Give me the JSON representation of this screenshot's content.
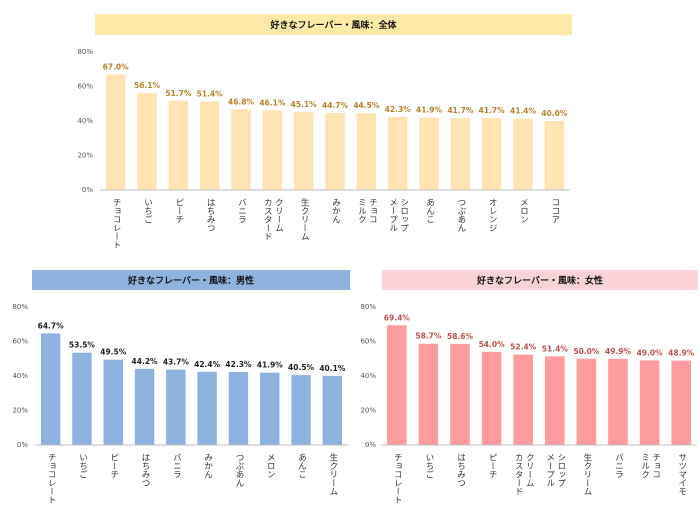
{
  "chart_data": [
    {
      "type": "bar",
      "title": "好きなフレーバー・風味：全体",
      "title_background": "#fde9a8",
      "color": "#fde4b2",
      "value_label_color": "#b8812f",
      "categories": [
        "チョコレート",
        "いちご",
        "ピーチ",
        "はちみつ",
        "バニラ",
        "カスタード\nクリーム",
        "生クリーム",
        "みかん",
        "ミルク\nチョコ",
        "メープル\nシロップ",
        "あんこ",
        "つぶあん",
        "オレンジ",
        "メロン",
        "ココア"
      ],
      "values": [
        67.0,
        56.1,
        51.7,
        51.4,
        46.8,
        46.1,
        45.1,
        44.7,
        44.5,
        42.3,
        41.9,
        41.7,
        41.7,
        41.4,
        40.0
      ],
      "value_labels": [
        "67.0%",
        "56.1%",
        "51.7%",
        "51.4%",
        "46.8%",
        "46.1%",
        "45.1%",
        "44.7%",
        "44.5%",
        "42.3%",
        "41.9%",
        "41.7%",
        "41.7%",
        "41.4%",
        "40.0%"
      ],
      "ylim": [
        0,
        80
      ],
      "yticks": [
        {
          "value": 0,
          "label": "0%"
        },
        {
          "value": 20,
          "label": "20%"
        },
        {
          "value": 40,
          "label": "40%"
        },
        {
          "value": 60,
          "label": "60%"
        },
        {
          "value": 80,
          "label": "80%"
        }
      ]
    },
    {
      "type": "bar",
      "title": "好きなフレーバー・風味：男性",
      "title_background": "#8fb3df",
      "color": "#8eb2e0",
      "value_label_color": "#1f1f1f",
      "categories": [
        "チョコレート",
        "いちご",
        "ピーチ",
        "はちみつ",
        "バニラ",
        "みかん",
        "つぶあん",
        "メロン",
        "あんこ",
        "生クリーム"
      ],
      "values": [
        64.7,
        53.5,
        49.5,
        44.2,
        43.7,
        42.4,
        42.3,
        41.9,
        40.5,
        40.1
      ],
      "value_labels": [
        "64.7%",
        "53.5%",
        "49.5%",
        "44.2%",
        "43.7%",
        "42.4%",
        "42.3%",
        "41.9%",
        "40.5%",
        "40.1%"
      ],
      "ylim": [
        0,
        80
      ],
      "yticks": [
        {
          "value": 0,
          "label": "0%"
        },
        {
          "value": 20,
          "label": "20%"
        },
        {
          "value": 40,
          "label": "40%"
        },
        {
          "value": 60,
          "label": "60%"
        },
        {
          "value": 80,
          "label": "80%"
        }
      ]
    },
    {
      "type": "bar",
      "title": "好きなフレーバー・風味：女性",
      "title_background": "#fbd2d6",
      "color": "#ff9a9f",
      "value_label_color": "#c0504d",
      "categories": [
        "チョコレート",
        "いちご",
        "はちみつ",
        "ピーチ",
        "カスタード\nクリーム",
        "メープル\nシロップ",
        "生クリーム",
        "バニラ",
        "ミルク\nチョコ",
        "サツマイモ"
      ],
      "values": [
        69.4,
        58.7,
        58.6,
        54.0,
        52.4,
        51.4,
        50.0,
        49.9,
        49.0,
        48.9
      ],
      "value_labels": [
        "69.4%",
        "58.7%",
        "58.6%",
        "54.0%",
        "52.4%",
        "51.4%",
        "50.0%",
        "49.9%",
        "49.0%",
        "48.9%"
      ],
      "ylim": [
        0,
        80
      ],
      "yticks": [
        {
          "value": 0,
          "label": "0%"
        },
        {
          "value": 20,
          "label": "20%"
        },
        {
          "value": 40,
          "label": "40%"
        },
        {
          "value": 60,
          "label": "60%"
        },
        {
          "value": 80,
          "label": "80%"
        }
      ]
    }
  ]
}
